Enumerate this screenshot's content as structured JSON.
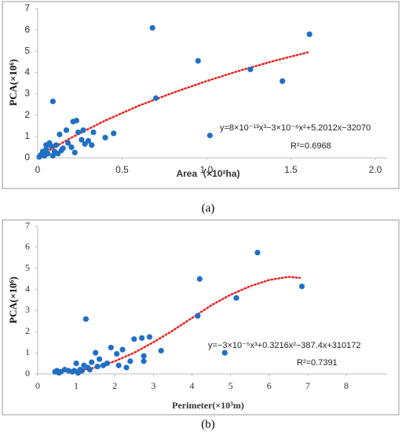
{
  "chart_data": [
    {
      "type": "scatter",
      "y_label": "PCA(×10⁶)",
      "x_label": "Area（×10²ha)",
      "caption": "(a)",
      "equation": "y=8×10⁻¹³x³−3×10⁻⁶x²+5.2012x−32070",
      "r_squared": "R²=0.6968",
      "xlim": [
        0,
        2
      ],
      "xticks": [
        0,
        0.5,
        {
          "value": 1,
          "label": "1.0"
        },
        1.5,
        {
          "value": 2,
          "label": "2.0"
        }
      ],
      "ylim": [
        0,
        7
      ],
      "yticks": [
        0,
        1,
        2,
        3,
        4,
        5,
        6,
        7
      ],
      "points": {
        "color": "#1f6fc5",
        "x": [
          0.68,
          1.61,
          0.95,
          1.26,
          1.45,
          0.7,
          1.02,
          0.09,
          0.45,
          0.4,
          0.33,
          0.32,
          0.28,
          0.27,
          0.26,
          0.23,
          0.21,
          0.24,
          0.2,
          0.17,
          0.15,
          0.13,
          0.11,
          0.1,
          0.08,
          0.07,
          0.06,
          0.05,
          0.04,
          0.03,
          0.02,
          0.01,
          0.12,
          0.14,
          0.18,
          0.3,
          0.22,
          0.09,
          0.05
        ],
        "values": [
          6.1,
          5.8,
          4.55,
          4.15,
          3.6,
          2.8,
          1.05,
          2.65,
          1.15,
          0.95,
          1.2,
          0.6,
          0.65,
          1.3,
          0.85,
          1.75,
          1.7,
          1.2,
          0.5,
          1.3,
          0.45,
          1.1,
          0.6,
          0.3,
          0.55,
          0.7,
          0.2,
          0.4,
          0.1,
          0.3,
          0.15,
          0.05,
          0.2,
          0.35,
          0.7,
          0.8,
          0.25,
          0.1,
          0.6
        ]
      },
      "trend": {
        "color": "#e8231f",
        "x": [
          0,
          0.2,
          0.4,
          0.6,
          0.8,
          1.0,
          1.2,
          1.4,
          1.6
        ],
        "values": [
          0.05,
          0.95,
          1.75,
          2.45,
          3.05,
          3.6,
          4.1,
          4.55,
          4.95
        ]
      }
    },
    {
      "type": "scatter",
      "y_label": "PCA(×10⁶)",
      "x_label": "Perimeter(×10³m)",
      "caption": "(b)",
      "equation": "y=−3×10⁻⁵x³+0.3216x²−387.4x+310172",
      "r_squared": "R²=0.7391",
      "xlim": [
        0,
        8
      ],
      "xticks": [
        0,
        1,
        2,
        3,
        4,
        5,
        6,
        7,
        8
      ],
      "ylim": [
        0,
        7
      ],
      "yticks": [
        0,
        1,
        2,
        3,
        4,
        5,
        6,
        7
      ],
      "points": {
        "color": "#1f6fc5",
        "x": [
          5.7,
          4.2,
          6.85,
          5.15,
          4.15,
          1.25,
          4.85,
          3.2,
          2.9,
          2.7,
          2.5,
          2.75,
          2.75,
          2.2,
          2.4,
          2.05,
          1.9,
          1.8,
          1.7,
          1.6,
          1.5,
          1.4,
          1.3,
          1.2,
          1.1,
          1.0,
          0.95,
          0.9,
          0.8,
          0.7,
          0.6,
          0.5,
          0.45,
          1.05,
          1.15,
          1.35,
          2.1,
          2.3,
          1.55,
          0.55
        ],
        "values": [
          5.75,
          4.5,
          4.15,
          3.6,
          2.75,
          2.6,
          1.0,
          1.1,
          1.75,
          1.7,
          1.65,
          0.85,
          0.6,
          1.15,
          0.6,
          0.95,
          1.25,
          0.5,
          0.4,
          0.7,
          1.0,
          0.55,
          0.3,
          0.4,
          0.2,
          0.5,
          0.15,
          0.1,
          0.15,
          0.2,
          0.1,
          0.15,
          0.1,
          0.05,
          0.15,
          0.2,
          0.4,
          0.3,
          0.35,
          0.05
        ]
      },
      "trend": {
        "color": "#e8231f",
        "x": [
          0.4,
          1,
          1.5,
          2,
          2.5,
          3,
          3.5,
          4,
          4.5,
          5,
          5.5,
          6,
          6.5,
          6.8
        ],
        "values": [
          0.1,
          0.15,
          0.3,
          0.6,
          1.0,
          1.5,
          2.05,
          2.65,
          3.25,
          3.75,
          4.15,
          4.45,
          4.6,
          4.55
        ]
      }
    }
  ]
}
